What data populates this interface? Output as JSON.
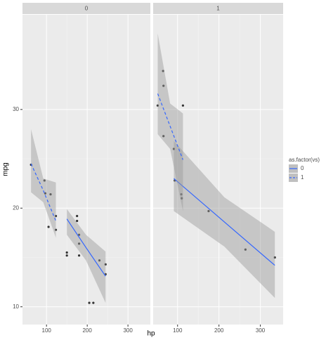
{
  "chart_data": {
    "type": "scatter",
    "x_label": "hp",
    "y_label": "mpg",
    "xlim": [
      41,
      355
    ],
    "ylim": [
      8.2,
      39.6
    ],
    "xticks": [
      100,
      200,
      300
    ],
    "yticks": [
      10,
      20,
      30
    ],
    "grid": true,
    "point_color": "#333333",
    "ribbon_color": "#999999",
    "panels": [
      {
        "label": "0",
        "x": [
          110,
          175,
          105,
          245,
          62,
          95,
          123,
          123,
          180,
          180,
          180,
          205,
          215,
          230,
          97,
          150,
          150,
          245,
          175
        ],
        "y": [
          21.4,
          18.7,
          18.1,
          14.3,
          24.4,
          22.8,
          19.2,
          17.8,
          16.4,
          17.3,
          15.2,
          10.4,
          10.4,
          14.7,
          21.5,
          15.5,
          15.2,
          13.3,
          19.2
        ]
      },
      {
        "label": "1",
        "x": [
          110,
          110,
          93,
          66,
          52,
          65,
          66,
          91,
          113,
          264,
          175,
          335,
          109
        ],
        "y": [
          21.0,
          21.0,
          22.8,
          32.4,
          30.4,
          33.9,
          27.3,
          26.0,
          30.4,
          15.8,
          19.7,
          15.0,
          21.4
        ]
      }
    ],
    "legend": {
      "title": "as.factor(vs)",
      "position": "right"
    },
    "series": [
      {
        "name": "0",
        "color": "#3366FF",
        "dash": "solid",
        "fits": [
          {
            "x": [
              150,
              197,
              245
            ],
            "y": [
              18.9,
              16.0,
              13.1
            ],
            "lower": [
              17.3,
              14.7,
              10.4
            ],
            "upper": [
              19.9,
              17.3,
              15.6
            ]
          },
          {
            "x": [
              91,
              213,
              335
            ],
            "y": [
              23.0,
              18.6,
              14.2
            ],
            "lower": [
              19.7,
              16.1,
              10.9
            ],
            "upper": [
              26.8,
              21.1,
              17.6
            ]
          }
        ]
      },
      {
        "name": "1",
        "color": "#3366FF",
        "dash": "dashed",
        "fits": [
          {
            "x": [
              62,
              92,
              123
            ],
            "y": [
              24.5,
              21.8,
              18.7
            ],
            "lower": [
              21.6,
              20.6,
              17.0
            ],
            "upper": [
              28.0,
              23.0,
              22.6
            ]
          },
          {
            "x": [
              52,
              82,
              113
            ],
            "y": [
              31.6,
              28.3,
              24.9
            ],
            "lower": [
              27.5,
              26.0,
              19.7
            ],
            "upper": [
              37.7,
              30.6,
              29.6
            ]
          }
        ]
      }
    ]
  }
}
